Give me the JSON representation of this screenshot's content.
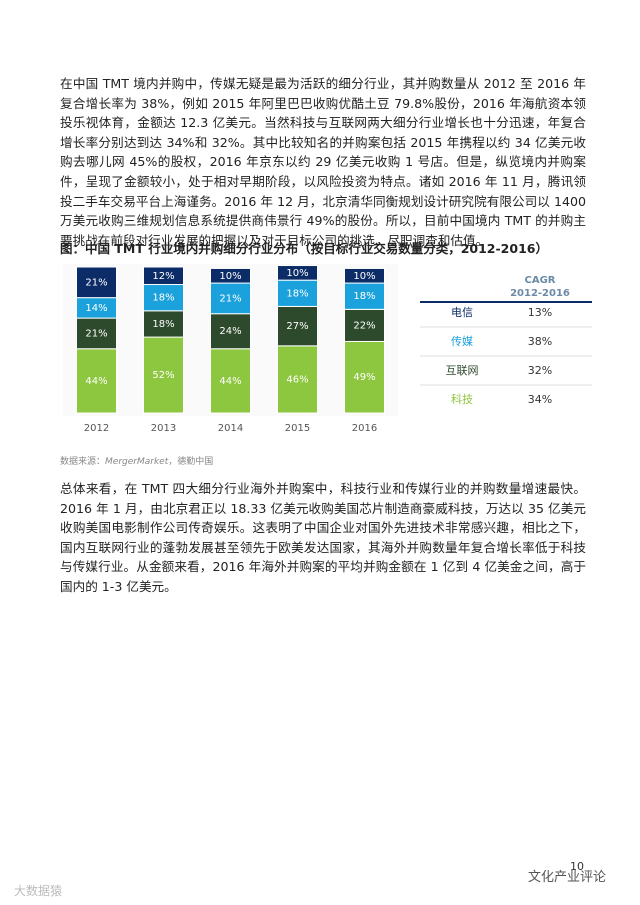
{
  "paragraphs": [
    "在中国 TMT 境内并购中，传媒无疑是最为活跃的细分行业，其并购数量从 2012 至 2016 年复合增长率为 38%，例如 2015 年阿里巴巴收购优酷土豆 79.8%股份，2016 年海航资本领投乐视体育，金额达 12.3 亿美元。当然科技与互联网两大细分行业增长也十分迅速，年复合增长率分别达到达 34%和 32%。其中比较知名的并购案包括 2015 年携程以约 34 亿美元收购去哪儿网 45%的股权，2016 年京东以约 29 亿美元收购 1 号店。但是，纵览境内并购案件，呈现了金额较小，处于相对早期阶段，以风险投资为特点。诸如 2016 年 11 月，腾讯领投二手车交易平台上海谨务。2016 年 12 月，北京清华同衡规划设计研究院有限公司以 1400 万美元收购三维规划信息系统提供商伟景行 49%的股份。所以，目前中国境内 TMT 的并购主要挑战在前段对行业发展的把握以及对于目标公司的挑选、尽职调查和估值。",
    "总体来看，在 TMT 四大细分行业海外并购案中，科技行业和传媒行业的并购数量增速最快。2016 年 1 月，由北京君正以 18.33 亿美元收购美国芯片制造商豪威科技，万达以 35 亿美元收购美国电影制作公司传奇娱乐。这表明了中国企业对国外先进技术非常感兴趣，相比之下，国内互联网行业的蓬勃发展甚至领先于欧美发达国家，其海外并购数量年复合增长率低于科技与传媒行业。从金额来看，2016 年海外并购案的平均并购金额在 1 亿到 4 亿美金之间，高于国内的 1-3 亿美元。"
  ],
  "figure": {
    "title": "图：中国 TMT 行业境内并购细分行业分布（按目标行业交易数量分类，2012-2016）",
    "chart_data": {
      "type": "bar",
      "stacked": true,
      "categories": [
        "2012",
        "2013",
        "2014",
        "2015",
        "2016"
      ],
      "ylim": [
        0,
        100
      ],
      "series": [
        {
          "name": "科技",
          "color": "#8dc63f",
          "cagr": "34%",
          "values": [
            44,
            52,
            44,
            46,
            49
          ],
          "value_labels": [
            "44%",
            "52%",
            "44%",
            "46%",
            "49%"
          ]
        },
        {
          "name": "互联网",
          "color": "#2e4a2c",
          "cagr": "32%",
          "values": [
            21,
            18,
            24,
            27,
            22
          ],
          "value_labels": [
            "21%",
            "18%",
            "24%",
            "27%",
            "22%"
          ]
        },
        {
          "name": "传媒",
          "color": "#1ba1dc",
          "cagr": "38%",
          "values": [
            14,
            18,
            21,
            18,
            18
          ],
          "value_labels": [
            "14%",
            "18%",
            "21%",
            "18%",
            "18%"
          ]
        },
        {
          "name": "电信",
          "color": "#0c2c67",
          "cagr": "13%",
          "values": [
            21,
            12,
            10,
            10,
            10
          ],
          "value_labels": [
            "21%",
            "12%",
            "10%",
            "10%",
            "10%"
          ]
        }
      ]
    },
    "table_header": [
      "CAGR",
      "2012-2016"
    ]
  },
  "source": {
    "label": "数据来源：",
    "name": "MergerMarket",
    "rest": "，德勤中国"
  },
  "page_number": "10",
  "watermarks": [
    "大数据猿",
    "文化产业评论"
  ]
}
